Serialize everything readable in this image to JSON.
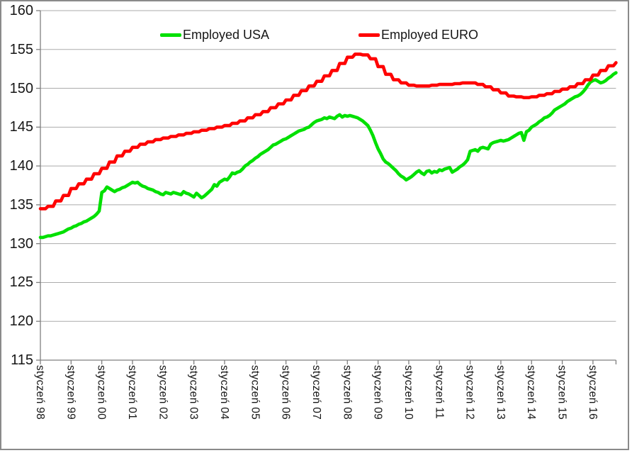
{
  "chart": {
    "background": "#ffffff",
    "border_color": "#8a8a8a",
    "text_color": "#161616",
    "gridline_color": "#ababab",
    "axis_color": "#7f7f7f"
  },
  "chart_data": {
    "type": "line",
    "title": "",
    "xlabel": "",
    "ylabel": "",
    "grid": "horizontal",
    "legend_position": "top-inside",
    "y_axis": {
      "min": 115,
      "max": 160,
      "step": 5,
      "ticks": [
        160,
        155,
        150,
        145,
        140,
        135,
        130,
        125,
        120,
        115
      ]
    },
    "x_axis": {
      "frequency": "monthly",
      "start": "1998-01",
      "end": "2016-10",
      "tick_labels": [
        "styczeń 98",
        "styczeń 99",
        "styczeń 00",
        "styczeń 01",
        "styczeń 02",
        "styczeń 03",
        "styczeń 04",
        "styczeń 05",
        "styczeń 06",
        "styczeń 07",
        "styczeń 08",
        "styczeń 09",
        "styczeń 10",
        "styczeń 11",
        "styczeń 12",
        "styczeń 13",
        "styczeń 14",
        "styczeń 15",
        "styczeń 16"
      ]
    },
    "series": [
      {
        "name": "Employed USA",
        "color": "#00e000",
        "values": [
          130.8,
          130.8,
          130.9,
          131.0,
          131.0,
          131.1,
          131.2,
          131.3,
          131.4,
          131.5,
          131.7,
          131.9,
          132.0,
          132.2,
          132.3,
          132.5,
          132.6,
          132.8,
          132.9,
          133.1,
          133.3,
          133.5,
          133.8,
          134.2,
          136.6,
          136.8,
          137.3,
          137.1,
          136.9,
          136.7,
          136.9,
          137.0,
          137.2,
          137.3,
          137.5,
          137.7,
          137.9,
          137.8,
          137.9,
          137.6,
          137.4,
          137.3,
          137.1,
          137.0,
          136.9,
          136.7,
          136.6,
          136.4,
          136.3,
          136.6,
          136.5,
          136.4,
          136.6,
          136.5,
          136.4,
          136.3,
          136.7,
          136.5,
          136.4,
          136.2,
          136.0,
          136.5,
          136.2,
          135.9,
          136.1,
          136.4,
          136.7,
          137.0,
          137.6,
          137.4,
          137.9,
          138.1,
          138.3,
          138.2,
          138.6,
          139.1,
          139.0,
          139.2,
          139.3,
          139.6,
          140.0,
          140.2,
          140.5,
          140.7,
          141.0,
          141.2,
          141.5,
          141.7,
          141.9,
          142.1,
          142.4,
          142.7,
          142.8,
          143.0,
          143.2,
          143.4,
          143.5,
          143.7,
          143.9,
          144.1,
          144.3,
          144.5,
          144.6,
          144.7,
          144.9,
          145.0,
          145.3,
          145.6,
          145.8,
          145.9,
          146.0,
          146.2,
          146.1,
          146.3,
          146.2,
          146.1,
          146.4,
          146.6,
          146.3,
          146.5,
          146.4,
          146.5,
          146.4,
          146.3,
          146.2,
          146.0,
          145.8,
          145.5,
          145.2,
          144.6,
          143.9,
          143.0,
          142.2,
          141.6,
          140.9,
          140.5,
          140.3,
          140.0,
          139.7,
          139.4,
          139.0,
          138.7,
          138.5,
          138.2,
          138.4,
          138.6,
          138.9,
          139.2,
          139.4,
          139.1,
          138.9,
          139.3,
          139.4,
          139.1,
          139.3,
          139.2,
          139.5,
          139.4,
          139.6,
          139.7,
          139.8,
          139.2,
          139.4,
          139.6,
          139.9,
          140.1,
          140.4,
          140.8,
          141.9,
          142.0,
          142.1,
          141.9,
          142.3,
          142.4,
          142.3,
          142.2,
          142.8,
          143.0,
          143.1,
          143.2,
          143.3,
          143.2,
          143.3,
          143.4,
          143.6,
          143.8,
          144.0,
          144.2,
          144.3,
          143.3,
          144.4,
          144.6,
          145.0,
          145.2,
          145.4,
          145.7,
          145.9,
          146.2,
          146.3,
          146.5,
          146.8,
          147.2,
          147.4,
          147.6,
          147.8,
          148.0,
          148.3,
          148.5,
          148.7,
          148.9,
          149.0,
          149.2,
          149.5,
          149.9,
          150.4,
          150.8,
          151.0,
          151.1,
          150.9,
          150.7,
          150.8,
          151.0,
          151.3,
          151.5,
          151.8,
          152.0
        ]
      },
      {
        "name": "Employed EURO",
        "color": "#ff0000",
        "values": [
          134.5,
          134.5,
          134.5,
          134.8,
          134.8,
          134.8,
          135.5,
          135.5,
          135.5,
          136.2,
          136.2,
          136.2,
          137.1,
          137.1,
          137.1,
          137.7,
          137.7,
          137.7,
          138.3,
          138.3,
          138.3,
          139.0,
          139.0,
          139.0,
          139.7,
          139.7,
          139.7,
          140.5,
          140.5,
          140.5,
          141.3,
          141.3,
          141.3,
          141.9,
          141.9,
          141.9,
          142.4,
          142.4,
          142.4,
          142.8,
          142.8,
          142.8,
          143.1,
          143.1,
          143.1,
          143.4,
          143.4,
          143.4,
          143.6,
          143.6,
          143.6,
          143.8,
          143.8,
          143.8,
          144.0,
          144.0,
          144.0,
          144.2,
          144.2,
          144.2,
          144.4,
          144.4,
          144.4,
          144.6,
          144.6,
          144.6,
          144.8,
          144.8,
          144.8,
          145.0,
          145.0,
          145.0,
          145.2,
          145.2,
          145.2,
          145.5,
          145.5,
          145.5,
          145.8,
          145.8,
          145.8,
          146.2,
          146.2,
          146.2,
          146.6,
          146.6,
          146.6,
          147.0,
          147.0,
          147.0,
          147.5,
          147.5,
          147.5,
          148.0,
          148.0,
          148.0,
          148.5,
          148.5,
          148.5,
          149.1,
          149.1,
          149.1,
          149.7,
          149.7,
          149.7,
          150.3,
          150.3,
          150.3,
          150.9,
          150.9,
          150.9,
          151.6,
          151.6,
          151.6,
          152.3,
          152.3,
          152.3,
          153.2,
          153.2,
          153.2,
          154.0,
          154.0,
          154.0,
          154.4,
          154.4,
          154.4,
          154.3,
          154.3,
          154.3,
          153.8,
          153.8,
          153.8,
          152.8,
          152.8,
          152.8,
          151.8,
          151.8,
          151.8,
          151.1,
          151.1,
          151.1,
          150.7,
          150.7,
          150.7,
          150.4,
          150.4,
          150.4,
          150.3,
          150.3,
          150.3,
          150.3,
          150.3,
          150.3,
          150.4,
          150.4,
          150.4,
          150.5,
          150.5,
          150.5,
          150.5,
          150.5,
          150.5,
          150.6,
          150.6,
          150.6,
          150.7,
          150.7,
          150.7,
          150.7,
          150.7,
          150.7,
          150.5,
          150.5,
          150.5,
          150.2,
          150.2,
          150.2,
          149.8,
          149.8,
          149.8,
          149.4,
          149.4,
          149.4,
          149.0,
          149.0,
          149.0,
          148.9,
          148.9,
          148.9,
          148.8,
          148.8,
          148.8,
          148.9,
          148.9,
          148.9,
          149.1,
          149.1,
          149.1,
          149.3,
          149.3,
          149.3,
          149.6,
          149.6,
          149.6,
          149.9,
          149.9,
          149.9,
          150.2,
          150.2,
          150.2,
          150.6,
          150.6,
          150.6,
          151.1,
          151.1,
          151.1,
          151.7,
          151.7,
          151.7,
          152.3,
          152.3,
          152.3,
          152.9,
          152.9,
          152.9,
          153.3
        ]
      }
    ]
  }
}
